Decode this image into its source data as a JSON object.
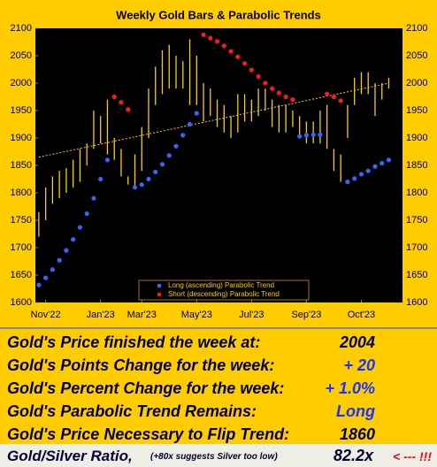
{
  "chart_data": {
    "type": "ohlc-parabolic",
    "title": "Weekly Gold Bars & Parabolic Trends",
    "ylim": [
      1600,
      2100
    ],
    "yticks": [
      1600,
      1650,
      1700,
      1750,
      1800,
      1850,
      1900,
      1950,
      2000,
      2050,
      2100
    ],
    "xlim": [
      -0.5,
      53
    ],
    "xticks": [
      {
        "value": 1,
        "label": "Nov'22"
      },
      {
        "value": 9,
        "label": "Jan'23"
      },
      {
        "value": 15,
        "label": "Mar'23"
      },
      {
        "value": 23,
        "label": "May'23"
      },
      {
        "value": 31,
        "label": "Jul'23"
      },
      {
        "value": 39,
        "label": "Sep'23"
      },
      {
        "value": 47,
        "label": "Oct'23"
      }
    ],
    "bar_color": "#ffcc00",
    "high": [
      1765,
      1810,
      1830,
      1840,
      1845,
      1860,
      1880,
      1890,
      1950,
      1940,
      1970,
      1900,
      1880,
      1830,
      1870,
      1920,
      1990,
      2030,
      2060,
      2070,
      2050,
      2040,
      2080,
      2050,
      2000,
      1990,
      1970,
      1960,
      1940,
      1980,
      1980,
      1970,
      1990,
      1990,
      1970,
      1960,
      1960,
      1950,
      1940,
      1930,
      1930,
      1950,
      1960,
      1880,
      1870,
      1960,
      2010,
      2020,
      2020,
      2000,
      2000,
      2010
    ],
    "low": [
      1720,
      1750,
      1780,
      1790,
      1800,
      1810,
      1820,
      1850,
      1880,
      1890,
      1870,
      1860,
      1830,
      1815,
      1810,
      1840,
      1900,
      1960,
      1980,
      1990,
      1990,
      1990,
      1960,
      1960,
      1930,
      1940,
      1920,
      1910,
      1900,
      1910,
      1930,
      1930,
      1940,
      1950,
      1920,
      1910,
      1910,
      1920,
      1900,
      1890,
      1890,
      1890,
      1880,
      1840,
      1820,
      1900,
      1960,
      1980,
      1980,
      1940,
      1970,
      1990
    ],
    "trend": {
      "x": [
        0,
        51
      ],
      "values": [
        1865,
        2000
      ],
      "color": "#ffcc00"
    },
    "series": [
      {
        "name": "Long (ascending) Parabolic Trend",
        "color": "#3366ff",
        "values": [
          1632,
          1645,
          1660,
          1677,
          1695,
          1715,
          1737,
          1762,
          1790,
          1825,
          1860,
          null,
          null,
          null,
          1810,
          1815,
          1825,
          1838,
          1852,
          1868,
          1885,
          1905,
          1925,
          1945,
          null,
          null,
          null,
          null,
          null,
          null,
          null,
          null,
          null,
          null,
          null,
          null,
          null,
          null,
          1903,
          1905,
          1906,
          1906,
          null,
          null,
          null,
          1820,
          1826,
          1834,
          1840,
          1848,
          1854,
          1860
        ]
      },
      {
        "name": "Short (descending) Parabolic Trend",
        "color": "#ff1a1a",
        "values": [
          null,
          null,
          null,
          null,
          null,
          null,
          null,
          null,
          null,
          null,
          null,
          1975,
          1965,
          1952,
          null,
          null,
          null,
          null,
          null,
          null,
          null,
          null,
          null,
          null,
          2088,
          2082,
          2076,
          2068,
          2058,
          2048,
          2036,
          2024,
          2012,
          2000,
          1990,
          1982,
          1975,
          1970,
          null,
          null,
          null,
          null,
          1980,
          1975,
          1968,
          null,
          null,
          null,
          null,
          null,
          null,
          null
        ]
      }
    ]
  },
  "table": {
    "rows": [
      [
        "Gold's Price finished the week at:",
        "2004"
      ],
      [
        "Gold's Points Change for the week:",
        "+ 20"
      ],
      [
        "Gold's Percent Change for the week:",
        "+ 1.0%"
      ],
      [
        "Gold's Parabolic Trend Remains:",
        "Long"
      ],
      [
        "Gold's Price Necessary to Flip Trend:",
        "1860"
      ]
    ],
    "ratio": {
      "label": "Gold/Silver Ratio,",
      "note": "(+80x suggests Silver too low)",
      "value": "82.2x",
      "flag": "< --- !!!"
    }
  }
}
